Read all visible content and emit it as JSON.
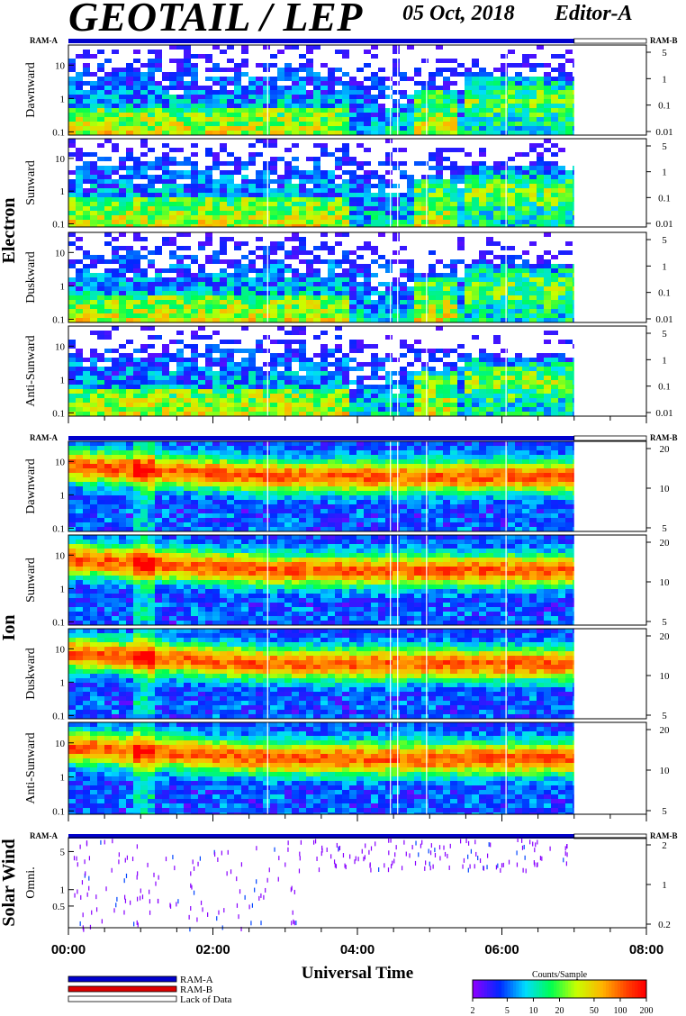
{
  "header": {
    "title": "GEOTAIL / LEP",
    "date": "05 Oct, 2018",
    "editor": "Editor-A"
  },
  "ram_labels": {
    "a": "RAM-A",
    "b": "RAM-B"
  },
  "legend": {
    "items": [
      {
        "label": "RAM-A",
        "color": "#0000cc"
      },
      {
        "label": "RAM-B",
        "color": "#dd0000"
      },
      {
        "label": "Lack of Data",
        "color": "#ffffff"
      }
    ]
  },
  "colorbar": {
    "title": "Counts/Sample",
    "ticks": [
      "2",
      "5",
      "10",
      "20",
      "50",
      "100",
      "200"
    ],
    "tick_values": [
      2,
      5,
      10,
      20,
      50,
      100,
      200
    ],
    "min": 2,
    "max": 200,
    "scale": "log"
  },
  "chart_data": {
    "type": "heatmap",
    "xlabel": "Universal Time",
    "x_ticks": [
      "00:00",
      "02:00",
      "04:00",
      "06:00",
      "08:00"
    ],
    "x_tick_hours": [
      0,
      2,
      4,
      6,
      8
    ],
    "xlim_hours": [
      0,
      8
    ],
    "data_coverage_hours": [
      0,
      7.0
    ],
    "groups": [
      {
        "name": "Electron",
        "panels": [
          {
            "label": "Dawnward",
            "left_ticks": [
              "10",
              "1",
              "0.1"
            ],
            "left_tick_values": [
              10,
              1,
              0.1
            ],
            "ylim": [
              0.08,
              40
            ],
            "right_ticks": [
              "5",
              "1",
              "0.1",
              "0.01"
            ],
            "palette": "electron"
          },
          {
            "label": "Sunward",
            "left_ticks": [
              "10",
              "1",
              "0.1"
            ],
            "left_tick_values": [
              10,
              1,
              0.1
            ],
            "ylim": [
              0.08,
              40
            ],
            "right_ticks": [
              "5",
              "1",
              "0.1",
              "0.01"
            ],
            "palette": "electron"
          },
          {
            "label": "Duskward",
            "left_ticks": [
              "10",
              "1",
              "0.1"
            ],
            "left_tick_values": [
              10,
              1,
              0.1
            ],
            "ylim": [
              0.08,
              40
            ],
            "right_ticks": [
              "5",
              "1",
              "0.1",
              "0.01"
            ],
            "palette": "electron"
          },
          {
            "label": "Anti-Sunward",
            "left_ticks": [
              "10",
              "1",
              "0.1"
            ],
            "left_tick_values": [
              10,
              1,
              0.1
            ],
            "ylim": [
              0.08,
              40
            ],
            "right_ticks": [
              "5",
              "1",
              "0.1",
              "0.01"
            ],
            "palette": "electron"
          }
        ]
      },
      {
        "name": "Ion",
        "panels": [
          {
            "label": "Dawnward",
            "left_ticks": [
              "10",
              "1",
              "0.1"
            ],
            "left_tick_values": [
              10,
              1,
              0.1
            ],
            "ylim": [
              0.08,
              40
            ],
            "right_ticks": [
              "20",
              "10",
              "5"
            ],
            "palette": "ion"
          },
          {
            "label": "Sunward",
            "left_ticks": [
              "10",
              "1",
              "0.1"
            ],
            "left_tick_values": [
              10,
              1,
              0.1
            ],
            "ylim": [
              0.08,
              40
            ],
            "right_ticks": [
              "20",
              "10",
              "5"
            ],
            "palette": "ion"
          },
          {
            "label": "Duskward",
            "left_ticks": [
              "10",
              "1",
              "0.1"
            ],
            "left_tick_values": [
              10,
              1,
              0.1
            ],
            "ylim": [
              0.08,
              40
            ],
            "right_ticks": [
              "20",
              "10",
              "5"
            ],
            "palette": "ion"
          },
          {
            "label": "Anti-Sunward",
            "left_ticks": [
              "10",
              "1",
              "0.1"
            ],
            "left_tick_values": [
              10,
              1,
              0.1
            ],
            "ylim": [
              0.08,
              40
            ],
            "right_ticks": [
              "20",
              "10",
              "5"
            ],
            "palette": "ion"
          }
        ]
      },
      {
        "name": "Solar Wind",
        "panels": [
          {
            "label": "Omni.",
            "left_ticks": [
              "5",
              "1",
              "0.5"
            ],
            "left_tick_values": [
              5,
              1,
              0.5
            ],
            "ylim": [
              0.2,
              9
            ],
            "right_ticks": [
              "2",
              "1",
              "0.2"
            ],
            "palette": "sw"
          }
        ]
      }
    ]
  }
}
